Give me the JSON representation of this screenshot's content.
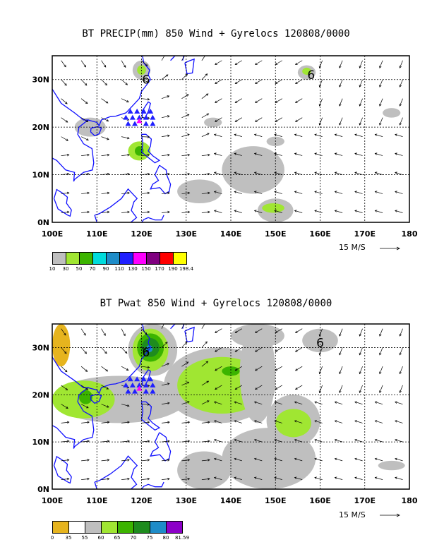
{
  "chart_data": [
    {
      "type": "heatmap",
      "title": "BT PRECIP(mm) 850 Wind + Gyrelocs 120808/0000",
      "xlim": [
        100,
        180
      ],
      "ylim": [
        0,
        35
      ],
      "x_ticks": [
        "100E",
        "110E",
        "120E",
        "130E",
        "140E",
        "150E",
        "160E",
        "170E",
        "180"
      ],
      "y_ticks": [
        "0N",
        "10N",
        "20N",
        "30N"
      ],
      "vector_scale_label": "15 M/S",
      "colorbar": {
        "labels": [
          "10",
          "30",
          "50",
          "70",
          "90",
          "110",
          "130",
          "150",
          "170",
          "190",
          "198.4"
        ],
        "colors": [
          "#bfbfbf",
          "#a0e632",
          "#3cb400",
          "#00dcdc",
          "#1e8cc8",
          "#2020ff",
          "#ff00ff",
          "#800080",
          "#ff0000",
          "#ffff00"
        ]
      },
      "gyre_markers": [
        {
          "lon": 121,
          "lat": 30,
          "label": "6"
        },
        {
          "lon": 158,
          "lat": 31,
          "label": "6"
        }
      ],
      "station_triangles_lon_lat": [
        [
          116.5,
          22
        ],
        [
          118,
          22
        ],
        [
          119.5,
          22
        ],
        [
          121,
          22
        ],
        [
          122.5,
          22
        ],
        [
          117.5,
          23.3
        ],
        [
          119,
          23.3
        ],
        [
          120.5,
          23.3
        ],
        [
          122,
          23.3
        ],
        [
          117,
          20.7
        ],
        [
          118.5,
          20.7
        ],
        [
          121,
          20.7
        ],
        [
          122.5,
          20.7
        ]
      ],
      "station_highlight_lon_lat": [
        119.5,
        21.3
      ],
      "shaded_regions": [
        {
          "level_index": 0,
          "lon": [
            105,
            112
          ],
          "lat": [
            18,
            22
          ]
        },
        {
          "level_index": 1,
          "lon": [
            117,
            122
          ],
          "lat": [
            13,
            17
          ]
        },
        {
          "level_index": 2,
          "lon": [
            118.5,
            120.5
          ],
          "lat": [
            14,
            16
          ]
        },
        {
          "level_index": 0,
          "lon": [
            118,
            122
          ],
          "lat": [
            30,
            34
          ]
        },
        {
          "level_index": 1,
          "lon": [
            119,
            121
          ],
          "lat": [
            31,
            33
          ]
        },
        {
          "level_index": 0,
          "lon": [
            138,
            152
          ],
          "lat": [
            6,
            16
          ]
        },
        {
          "level_index": 0,
          "lon": [
            128,
            138
          ],
          "lat": [
            4,
            9
          ]
        },
        {
          "level_index": 0,
          "lon": [
            146,
            154
          ],
          "lat": [
            0,
            5
          ]
        },
        {
          "level_index": 1,
          "lon": [
            147,
            152
          ],
          "lat": [
            2,
            4
          ]
        },
        {
          "level_index": 0,
          "lon": [
            155,
            159
          ],
          "lat": [
            30,
            33
          ]
        },
        {
          "level_index": 1,
          "lon": [
            156,
            158
          ],
          "lat": [
            31,
            32.5
          ]
        },
        {
          "level_index": 0,
          "lon": [
            174,
            178
          ],
          "lat": [
            22,
            24
          ]
        },
        {
          "level_index": 0,
          "lon": [
            134,
            138
          ],
          "lat": [
            20,
            22
          ]
        },
        {
          "level_index": 0,
          "lon": [
            148,
            152
          ],
          "lat": [
            16,
            18
          ]
        }
      ]
    },
    {
      "type": "heatmap",
      "title": "BT Pwat 850 Wind + Gyrelocs 120808/0000",
      "xlim": [
        100,
        180
      ],
      "ylim": [
        0,
        35
      ],
      "x_ticks": [
        "100E",
        "110E",
        "120E",
        "130E",
        "140E",
        "150E",
        "160E",
        "170E",
        "180"
      ],
      "y_ticks": [
        "0N",
        "10N",
        "20N",
        "30N"
      ],
      "vector_scale_label": "15 M/S",
      "colorbar": {
        "labels": [
          "0",
          "35",
          "55",
          "60",
          "65",
          "70",
          "75",
          "80",
          "81.59"
        ],
        "colors": [
          "#e6b41e",
          "#ffffff",
          "#bfbfbf",
          "#a0e632",
          "#3cb400",
          "#1e8c1e",
          "#1e8cc8",
          "#8c00c8"
        ]
      },
      "gyre_markers": [
        {
          "lon": 121,
          "lat": 29,
          "label": "6"
        },
        {
          "lon": 160,
          "lat": 31,
          "label": "6"
        }
      ],
      "station_triangles_lon_lat": [
        [
          116.5,
          22
        ],
        [
          118,
          22
        ],
        [
          119.5,
          22
        ],
        [
          121,
          22
        ],
        [
          122.5,
          22
        ],
        [
          117.5,
          23.3
        ],
        [
          119,
          23.3
        ],
        [
          120.5,
          23.3
        ],
        [
          122,
          23.3
        ],
        [
          117,
          20.7
        ],
        [
          118.5,
          20.7
        ],
        [
          121,
          20.7
        ],
        [
          122.5,
          20.7
        ]
      ],
      "station_highlight_lon_lat": [
        119.5,
        21.3
      ],
      "shaded_regions": [
        {
          "level_index": 0,
          "lon": [
            100,
            104
          ],
          "lat": [
            26,
            35
          ]
        },
        {
          "level_index": 2,
          "lon": [
            100,
            130
          ],
          "lat": [
            14,
            24
          ]
        },
        {
          "level_index": 3,
          "lon": [
            100,
            114
          ],
          "lat": [
            15,
            23
          ]
        },
        {
          "level_index": 4,
          "lon": [
            106,
            109
          ],
          "lat": [
            18,
            21
          ]
        },
        {
          "level_index": 2,
          "lon": [
            117,
            128
          ],
          "lat": [
            24,
            35
          ]
        },
        {
          "level_index": 3,
          "lon": [
            118,
            126
          ],
          "lat": [
            25,
            34
          ]
        },
        {
          "level_index": 4,
          "lon": [
            119,
            125
          ],
          "lat": [
            27,
            33
          ]
        },
        {
          "level_index": 5,
          "lon": [
            120,
            124
          ],
          "lat": [
            28,
            32
          ]
        },
        {
          "level_index": 6,
          "lon": [
            121,
            122.5
          ],
          "lat": [
            29,
            30.5
          ]
        },
        {
          "level_index": 2,
          "lon": [
            125,
            150
          ],
          "lat": [
            14,
            30
          ]
        },
        {
          "level_index": 3,
          "lon": [
            128,
            148
          ],
          "lat": [
            16,
            28
          ]
        },
        {
          "level_index": 4,
          "lon": [
            138,
            142
          ],
          "lat": [
            24,
            26
          ]
        },
        {
          "level_index": 2,
          "lon": [
            138,
            159
          ],
          "lat": [
            0,
            13
          ]
        },
        {
          "level_index": 2,
          "lon": [
            148,
            160
          ],
          "lat": [
            9,
            20
          ]
        },
        {
          "level_index": 3,
          "lon": [
            150,
            158
          ],
          "lat": [
            11,
            17
          ]
        },
        {
          "level_index": 2,
          "lon": [
            142,
            150
          ],
          "lat": [
            14,
            35
          ]
        },
        {
          "level_index": 2,
          "lon": [
            128,
            140
          ],
          "lat": [
            0,
            8
          ]
        },
        {
          "level_index": 2,
          "lon": [
            173,
            179
          ],
          "lat": [
            4,
            6
          ]
        },
        {
          "level_index": 2,
          "lon": [
            156,
            164
          ],
          "lat": [
            29,
            34
          ]
        },
        {
          "level_index": 2,
          "lon": [
            140,
            152
          ],
          "lat": [
            30,
            35
          ]
        }
      ]
    }
  ]
}
